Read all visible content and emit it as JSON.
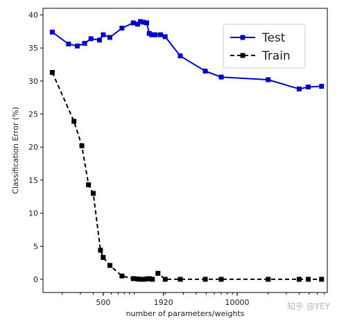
{
  "chart_data": {
    "type": "line",
    "xlabel": "number of parameters/weights",
    "ylabel": "Classification Error (%)",
    "x_scale": "log",
    "xlim": [
      130,
      75000
    ],
    "ylim": [
      -2,
      41
    ],
    "yticks": [
      0,
      5,
      10,
      15,
      20,
      25,
      30,
      35,
      40
    ],
    "xticks_labeled": [
      500,
      1920,
      10000
    ],
    "xtick_labels": [
      "500",
      "1920",
      "10000"
    ],
    "grid": false,
    "legend_position": "top-right",
    "series": [
      {
        "name": "Test",
        "color": "#0000cc",
        "line_style": "solid",
        "marker": "square",
        "points": [
          [
            160,
            37.4
          ],
          [
            230,
            35.6
          ],
          [
            280,
            35.3
          ],
          [
            330,
            35.7
          ],
          [
            380,
            36.4
          ],
          [
            460,
            36.2
          ],
          [
            500,
            37.0
          ],
          [
            580,
            36.6
          ],
          [
            760,
            38.0
          ],
          [
            980,
            38.8
          ],
          [
            1080,
            38.6
          ],
          [
            1150,
            39.0
          ],
          [
            1230,
            38.9
          ],
          [
            1320,
            38.8
          ],
          [
            1400,
            37.2
          ],
          [
            1480,
            37.0
          ],
          [
            1600,
            37.0
          ],
          [
            1800,
            37.0
          ],
          [
            2000,
            36.7
          ],
          [
            2800,
            33.8
          ],
          [
            4900,
            31.5
          ],
          [
            7000,
            30.6
          ],
          [
            20000,
            30.2
          ],
          [
            40000,
            28.8
          ],
          [
            49000,
            29.1
          ],
          [
            66000,
            29.2
          ]
        ]
      },
      {
        "name": "Train",
        "color": "#000000",
        "line_style": "dashed",
        "marker": "square",
        "points": [
          [
            160,
            31.3
          ],
          [
            260,
            23.9
          ],
          [
            310,
            20.2
          ],
          [
            360,
            14.3
          ],
          [
            400,
            13.0
          ],
          [
            470,
            4.4
          ],
          [
            500,
            3.3
          ],
          [
            580,
            2.1
          ],
          [
            760,
            0.5
          ],
          [
            980,
            0.1
          ],
          [
            1080,
            0.05
          ],
          [
            1150,
            0.0
          ],
          [
            1230,
            0.0
          ],
          [
            1320,
            0.05
          ],
          [
            1400,
            0.1
          ],
          [
            1500,
            0.0
          ],
          [
            1700,
            0.9
          ],
          [
            2000,
            0.0
          ],
          [
            2800,
            0.0
          ],
          [
            4900,
            0.0
          ],
          [
            7000,
            0.0
          ],
          [
            20000,
            0.0
          ],
          [
            40000,
            0.0
          ],
          [
            49000,
            0.0
          ],
          [
            66000,
            0.0
          ]
        ]
      }
    ]
  },
  "watermark": "知乎 @YEY"
}
